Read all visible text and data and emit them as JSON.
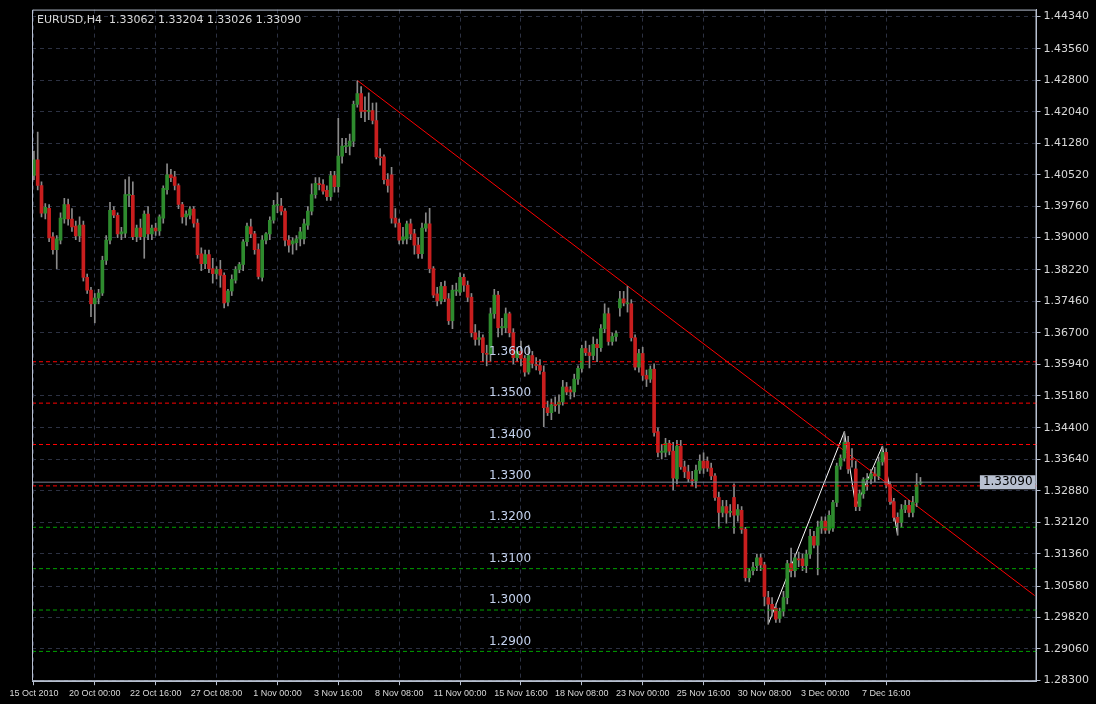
{
  "chart_data": {
    "type": "candlestick",
    "title": "EURUSD,H4  1.33062 1.33204 1.33026 1.33090",
    "categories": [
      "15 Oct 2010",
      null,
      null,
      null,
      null,
      null,
      null,
      null,
      null,
      null,
      null,
      null,
      null,
      null,
      null,
      null,
      "20 Oct 00:00",
      null,
      null,
      null,
      null,
      null,
      null,
      null,
      null,
      null,
      null,
      null,
      null,
      null,
      null,
      null,
      "22 Oct 16:00",
      null,
      null,
      null,
      null,
      null,
      null,
      null,
      null,
      null,
      null,
      null,
      null,
      null,
      null,
      null,
      "27 Oct 08:00",
      null,
      null,
      null,
      null,
      null,
      null,
      null,
      null,
      null,
      null,
      null,
      null,
      null,
      null,
      null,
      "1 Nov 00:00",
      null,
      null,
      null,
      null,
      null,
      null,
      null,
      null,
      null,
      null,
      null,
      null,
      null,
      null,
      null,
      "3 Nov 16:00",
      null,
      null,
      null,
      null,
      null,
      null,
      null,
      null,
      null,
      null,
      null,
      null,
      null,
      null,
      null,
      "8 Nov 08:00",
      null,
      null,
      null,
      null,
      null,
      null,
      null,
      null,
      null,
      null,
      null,
      null,
      null,
      null,
      null,
      "11 Nov 00:00",
      null,
      null,
      null,
      null,
      null,
      null,
      null,
      null,
      null,
      null,
      null,
      null,
      null,
      null,
      null,
      "15 Nov 16:00",
      null,
      null,
      null,
      null,
      null,
      null,
      null,
      null,
      null,
      null,
      null,
      null,
      null,
      null,
      null,
      "18 Nov 08:00",
      null,
      null,
      null,
      null,
      null,
      null,
      null,
      null,
      null,
      null,
      null,
      null,
      null,
      null,
      null,
      "23 Nov 00:00",
      null,
      null,
      null,
      null,
      null,
      null,
      null,
      null,
      null,
      null,
      null,
      null,
      null,
      null,
      null,
      "25 Nov 16:00",
      null,
      null,
      null,
      null,
      null,
      null,
      null,
      null,
      null,
      null,
      null,
      null,
      null,
      null,
      null,
      "30 Nov 08:00",
      null,
      null,
      null,
      null,
      null,
      null,
      null,
      null,
      null,
      null,
      null,
      null,
      null,
      null,
      null,
      "3 Dec 00:00",
      null,
      null,
      null,
      null,
      null,
      null,
      null,
      null,
      null,
      null,
      null,
      null,
      null,
      null,
      null,
      "7 Dec 16:00",
      null,
      null,
      null,
      null,
      null,
      null,
      null,
      null,
      null,
      null,
      null,
      null,
      null,
      null,
      null,
      null,
      null,
      null,
      null,
      null,
      null,
      null,
      null,
      null,
      null,
      null,
      null,
      null,
      null,
      null,
      null,
      null,
      null,
      null,
      null,
      null,
      null,
      null,
      null
    ],
    "ohlc": [
      [
        1.405,
        1.4109,
        1.404,
        1.4088
      ],
      [
        1.4088,
        1.4155,
        1.4015,
        1.4026
      ],
      [
        1.4026,
        1.4035,
        1.395,
        1.3959
      ],
      [
        1.3959,
        1.3982,
        1.3945,
        1.3973
      ],
      [
        1.3971,
        1.398,
        1.389,
        1.3899
      ],
      [
        1.3902,
        1.3912,
        1.386,
        1.3871
      ],
      [
        1.3871,
        1.3905,
        1.3825,
        1.3897
      ],
      [
        1.3894,
        1.396,
        1.3885,
        1.3947
      ],
      [
        1.3945,
        1.3995,
        1.3935,
        1.398
      ],
      [
        1.398,
        1.3993,
        1.393,
        1.3945
      ],
      [
        1.3945,
        1.397,
        1.3915,
        1.3926
      ],
      [
        1.3928,
        1.394,
        1.3895,
        1.3904
      ],
      [
        1.3904,
        1.395,
        1.389,
        1.393
      ],
      [
        1.393,
        1.394,
        1.3795,
        1.3804
      ],
      [
        1.3804,
        1.3812,
        1.3765,
        1.3773
      ],
      [
        1.3773,
        1.378,
        1.3709,
        1.374
      ],
      [
        1.374,
        1.3765,
        1.3694,
        1.3754
      ],
      [
        1.3754,
        1.3775,
        1.374,
        1.3766
      ],
      [
        1.3766,
        1.3855,
        1.376,
        1.3845
      ],
      [
        1.3845,
        1.3905,
        1.3835,
        1.3894
      ],
      [
        1.3894,
        1.3985,
        1.3885,
        1.3966
      ],
      [
        1.3966,
        1.3975,
        1.3948,
        1.3954
      ],
      [
        1.3954,
        1.396,
        1.39,
        1.3909
      ],
      [
        1.3909,
        1.3925,
        1.3895,
        1.3914
      ],
      [
        1.3911,
        1.404,
        1.39,
        1.4004
      ],
      [
        1.4002,
        1.4047,
        1.3975,
        1.4004
      ],
      [
        1.4002,
        1.4035,
        1.3895,
        1.3902
      ],
      [
        1.3902,
        1.393,
        1.389,
        1.3923
      ],
      [
        1.3923,
        1.3945,
        1.3895,
        1.3902
      ],
      [
        1.3902,
        1.3965,
        1.385,
        1.3957
      ],
      [
        1.3957,
        1.3975,
        1.3895,
        1.3909
      ],
      [
        1.3909,
        1.393,
        1.3895,
        1.3923
      ],
      [
        1.3923,
        1.3935,
        1.3905,
        1.3916
      ],
      [
        1.3916,
        1.3955,
        1.3905,
        1.395
      ],
      [
        1.3947,
        1.4025,
        1.3935,
        1.4019
      ],
      [
        1.4016,
        1.4078,
        1.4005,
        1.4052
      ],
      [
        1.4052,
        1.4065,
        1.4035,
        1.4045
      ],
      [
        1.4047,
        1.406,
        1.4015,
        1.4026
      ],
      [
        1.4026,
        1.403,
        1.397,
        1.398
      ],
      [
        1.398,
        1.3985,
        1.3935,
        1.395
      ],
      [
        1.395,
        1.3965,
        1.393,
        1.3957
      ],
      [
        1.3954,
        1.3975,
        1.3945,
        1.3969
      ],
      [
        1.3969,
        1.3975,
        1.3925,
        1.3935
      ],
      [
        1.3935,
        1.3945,
        1.385,
        1.3859
      ],
      [
        1.3861,
        1.3875,
        1.382,
        1.3837
      ],
      [
        1.3837,
        1.387,
        1.3825,
        1.3859
      ],
      [
        1.3859,
        1.387,
        1.3815,
        1.3825
      ],
      [
        1.3825,
        1.385,
        1.379,
        1.3813
      ],
      [
        1.3813,
        1.383,
        1.38,
        1.3823
      ],
      [
        1.3823,
        1.3845,
        1.378,
        1.3809
      ],
      [
        1.3809,
        1.3815,
        1.373,
        1.3742
      ],
      [
        1.3744,
        1.3775,
        1.3735,
        1.3771
      ],
      [
        1.3771,
        1.381,
        1.376,
        1.3799
      ],
      [
        1.3797,
        1.383,
        1.379,
        1.3823
      ],
      [
        1.3823,
        1.384,
        1.3815,
        1.3835
      ],
      [
        1.3835,
        1.3895,
        1.382,
        1.389
      ],
      [
        1.389,
        1.3935,
        1.388,
        1.3928
      ],
      [
        1.3926,
        1.3945,
        1.39,
        1.3909
      ],
      [
        1.3909,
        1.3915,
        1.386,
        1.3871
      ],
      [
        1.3871,
        1.3885,
        1.38,
        1.3806
      ],
      [
        1.3804,
        1.3905,
        1.3795,
        1.3894
      ],
      [
        1.3894,
        1.3912,
        1.3885,
        1.3909
      ],
      [
        1.3909,
        1.395,
        1.3895,
        1.3942
      ],
      [
        1.3942,
        1.399,
        1.3935,
        1.3978
      ],
      [
        1.3978,
        1.4009,
        1.396,
        1.398
      ],
      [
        1.3976,
        1.3995,
        1.3955,
        1.3964
      ],
      [
        1.3964,
        1.397,
        1.388,
        1.3894
      ],
      [
        1.3894,
        1.3905,
        1.3865,
        1.3882
      ],
      [
        1.3885,
        1.39,
        1.386,
        1.3892
      ],
      [
        1.3888,
        1.3905,
        1.387,
        1.3897
      ],
      [
        1.3897,
        1.3925,
        1.388,
        1.3914
      ],
      [
        1.3897,
        1.3945,
        1.3885,
        1.3933
      ],
      [
        1.393,
        1.3975,
        1.392,
        1.3964
      ],
      [
        1.3964,
        1.403,
        1.3955,
        1.4004
      ],
      [
        1.4004,
        1.4045,
        1.3995,
        1.4031
      ],
      [
        1.403,
        1.4045,
        1.4015,
        1.4028
      ],
      [
        1.4028,
        1.404,
        1.4005,
        1.4012
      ],
      [
        1.4014,
        1.4025,
        1.399,
        1.3999
      ],
      [
        1.3999,
        1.406,
        1.399,
        1.405
      ],
      [
        1.405,
        1.406,
        1.401,
        1.4023
      ],
      [
        1.4023,
        1.4188,
        1.401,
        1.4097
      ],
      [
        1.4097,
        1.414,
        1.408,
        1.4121
      ],
      [
        1.412,
        1.414,
        1.4105,
        1.4121
      ],
      [
        1.4121,
        1.415,
        1.41,
        1.4133
      ],
      [
        1.4133,
        1.423,
        1.412,
        1.4222
      ],
      [
        1.4222,
        1.4279,
        1.4215,
        1.4248
      ],
      [
        1.4248,
        1.4265,
        1.419,
        1.4205
      ],
      [
        1.4207,
        1.424,
        1.418,
        1.4205
      ],
      [
        1.4205,
        1.425,
        1.4185,
        1.4207
      ],
      [
        1.4207,
        1.4225,
        1.4175,
        1.4183
      ],
      [
        1.4183,
        1.4226,
        1.409,
        1.4095
      ],
      [
        1.4095,
        1.4115,
        1.4075,
        1.4093
      ],
      [
        1.4095,
        1.41,
        1.403,
        1.404
      ],
      [
        1.404,
        1.4055,
        1.401,
        1.4026
      ],
      [
        1.4052,
        1.407,
        1.3935,
        1.3947
      ],
      [
        1.3947,
        1.397,
        1.3925,
        1.3935
      ],
      [
        1.3935,
        1.3945,
        1.3885,
        1.3894
      ],
      [
        1.3894,
        1.3925,
        1.3885,
        1.3902
      ],
      [
        1.3897,
        1.394,
        1.3885,
        1.3933
      ],
      [
        1.3933,
        1.3945,
        1.3895,
        1.3909
      ],
      [
        1.3909,
        1.392,
        1.386,
        1.3882
      ],
      [
        1.3882,
        1.39,
        1.385,
        1.3861
      ],
      [
        1.3861,
        1.3935,
        1.385,
        1.3923
      ],
      [
        1.3923,
        1.396,
        1.3915,
        1.3933
      ],
      [
        1.3933,
        1.3971,
        1.3815,
        1.3825
      ],
      [
        1.3825,
        1.383,
        1.3755,
        1.3761
      ],
      [
        1.3764,
        1.378,
        1.3735,
        1.3747
      ],
      [
        1.3747,
        1.3792,
        1.374,
        1.3782
      ],
      [
        1.3782,
        1.3795,
        1.3745,
        1.3752
      ],
      [
        1.3752,
        1.3765,
        1.369,
        1.3699
      ],
      [
        1.3699,
        1.3785,
        1.368,
        1.3773
      ],
      [
        1.3771,
        1.379,
        1.376,
        1.3773
      ],
      [
        1.3768,
        1.3815,
        1.376,
        1.3804
      ],
      [
        1.3804,
        1.3812,
        1.377,
        1.3785
      ],
      [
        1.3785,
        1.3795,
        1.3745,
        1.3756
      ],
      [
        1.3756,
        1.3765,
        1.366,
        1.367
      ],
      [
        1.367,
        1.369,
        1.364,
        1.3654
      ],
      [
        1.3654,
        1.3675,
        1.364,
        1.3658
      ],
      [
        1.3658,
        1.3665,
        1.36,
        1.3622
      ],
      [
        1.362,
        1.364,
        1.359,
        1.3618
      ],
      [
        1.3618,
        1.373,
        1.36,
        1.3716
      ],
      [
        1.3716,
        1.3775,
        1.3705,
        1.3761
      ],
      [
        1.3761,
        1.377,
        1.366,
        1.3682
      ],
      [
        1.3682,
        1.3705,
        1.3665,
        1.3685
      ],
      [
        1.3682,
        1.373,
        1.367,
        1.3716
      ],
      [
        1.3716,
        1.372,
        1.366,
        1.367
      ],
      [
        1.367,
        1.368,
        1.3595,
        1.361
      ],
      [
        1.361,
        1.3635,
        1.36,
        1.3625
      ],
      [
        1.3625,
        1.365,
        1.359,
        1.3608
      ],
      [
        1.3608,
        1.3615,
        1.3565,
        1.3575
      ],
      [
        1.3575,
        1.364,
        1.357,
        1.3615
      ],
      [
        1.3615,
        1.3625,
        1.3585,
        1.3596
      ],
      [
        1.3593,
        1.361,
        1.358,
        1.3591
      ],
      [
        1.3591,
        1.3605,
        1.357,
        1.3579
      ],
      [
        1.3575,
        1.359,
        1.3443,
        1.3489
      ],
      [
        1.3489,
        1.3505,
        1.347,
        1.3477
      ],
      [
        1.3477,
        1.351,
        1.346,
        1.3496
      ],
      [
        1.3496,
        1.3515,
        1.348,
        1.3494
      ],
      [
        1.3496,
        1.352,
        1.3475,
        1.3503
      ],
      [
        1.3503,
        1.3555,
        1.3495,
        1.3539
      ],
      [
        1.3539,
        1.355,
        1.352,
        1.3527
      ],
      [
        1.3532,
        1.354,
        1.351,
        1.3527
      ],
      [
        1.3527,
        1.357,
        1.3515,
        1.3558
      ],
      [
        1.3558,
        1.359,
        1.3545,
        1.3584
      ],
      [
        1.3584,
        1.364,
        1.3575,
        1.3632
      ],
      [
        1.3632,
        1.365,
        1.3615,
        1.3622
      ],
      [
        1.3622,
        1.364,
        1.3585,
        1.3615
      ],
      [
        1.3615,
        1.366,
        1.3605,
        1.3642
      ],
      [
        1.3642,
        1.3655,
        1.36,
        1.3634
      ],
      [
        1.3634,
        1.369,
        1.3625,
        1.368
      ],
      [
        1.368,
        1.374,
        1.367,
        1.3716
      ],
      [
        1.3716,
        1.373,
        1.364,
        1.3649
      ],
      [
        1.3649,
        1.367,
        1.364,
        1.3661
      ],
      [
        1.3661,
        1.3675,
        1.365,
        1.3668
      ],
      [
        1.373,
        1.377,
        1.371,
        1.3752
      ],
      [
        1.3752,
        1.377,
        1.3735,
        1.3742
      ],
      [
        1.374,
        1.3782,
        1.372,
        1.3742
      ],
      [
        1.374,
        1.375,
        1.365,
        1.3658
      ],
      [
        1.3658,
        1.3665,
        1.358,
        1.3587
      ],
      [
        1.3587,
        1.363,
        1.3575,
        1.362
      ],
      [
        1.362,
        1.3635,
        1.3555,
        1.3567
      ],
      [
        1.3567,
        1.358,
        1.354,
        1.3558
      ],
      [
        1.3558,
        1.359,
        1.355,
        1.3582
      ],
      [
        1.3582,
        1.3595,
        1.342,
        1.3429
      ],
      [
        1.3431,
        1.344,
        1.337,
        1.3381
      ],
      [
        1.3381,
        1.34,
        1.3365,
        1.3384
      ],
      [
        1.3381,
        1.3415,
        1.337,
        1.3403
      ],
      [
        1.3403,
        1.341,
        1.3375,
        1.3384
      ],
      [
        1.3384,
        1.3405,
        1.329,
        1.3319
      ],
      [
        1.3317,
        1.341,
        1.3305,
        1.3396
      ],
      [
        1.3396,
        1.341,
        1.334,
        1.3346
      ],
      [
        1.3346,
        1.336,
        1.332,
        1.3334
      ],
      [
        1.3334,
        1.335,
        1.331,
        1.3317
      ],
      [
        1.3315,
        1.3335,
        1.33,
        1.3312
      ],
      [
        1.3312,
        1.335,
        1.3295,
        1.3338
      ],
      [
        1.3338,
        1.3375,
        1.333,
        1.336
      ],
      [
        1.336,
        1.338,
        1.333,
        1.3343
      ],
      [
        1.336,
        1.337,
        1.3335,
        1.3343
      ],
      [
        1.3343,
        1.3355,
        1.3315,
        1.3324
      ],
      [
        1.3324,
        1.333,
        1.3265,
        1.3272
      ],
      [
        1.3272,
        1.3285,
        1.3198,
        1.3236
      ],
      [
        1.3236,
        1.3265,
        1.3225,
        1.325
      ],
      [
        1.325,
        1.3265,
        1.321,
        1.3234
      ],
      [
        1.3236,
        1.3255,
        1.3225,
        1.3238
      ],
      [
        1.3272,
        1.3305,
        1.3185,
        1.3229
      ],
      [
        1.3229,
        1.3255,
        1.3215,
        1.3243
      ],
      [
        1.3241,
        1.325,
        1.3185,
        1.3195
      ],
      [
        1.3195,
        1.32,
        1.307,
        1.3078
      ],
      [
        1.3078,
        1.31,
        1.3068,
        1.3095
      ],
      [
        1.3095,
        1.3115,
        1.3085,
        1.3104
      ],
      [
        1.3107,
        1.3135,
        1.3095,
        1.3126
      ],
      [
        1.3126,
        1.3135,
        1.3095,
        1.3109
      ],
      [
        1.3109,
        1.3115,
        1.301,
        1.3033
      ],
      [
        1.303,
        1.3045,
        1.2966,
        1.3014
      ],
      [
        1.3014,
        1.303,
        1.2985,
        1.3002
      ],
      [
        1.3004,
        1.3015,
        1.297,
        1.2978
      ],
      [
        1.298,
        1.3005,
        1.297,
        1.2997
      ],
      [
        1.2997,
        1.3045,
        1.2985,
        1.303
      ],
      [
        1.303,
        1.312,
        1.3015,
        1.3112
      ],
      [
        1.3112,
        1.315,
        1.308,
        1.3095
      ],
      [
        1.3095,
        1.3135,
        1.308,
        1.3126
      ],
      [
        1.3124,
        1.314,
        1.3105,
        1.3121
      ],
      [
        1.3124,
        1.3135,
        1.3095,
        1.3107
      ],
      [
        1.3107,
        1.3145,
        1.309,
        1.3135
      ],
      [
        1.3135,
        1.3195,
        1.3125,
        1.3178
      ],
      [
        1.3178,
        1.319,
        1.315,
        1.3157
      ],
      [
        1.3157,
        1.3215,
        1.3085,
        1.3198
      ],
      [
        1.3198,
        1.3225,
        1.3185,
        1.3215
      ],
      [
        1.3215,
        1.3225,
        1.3185,
        1.3193
      ],
      [
        1.3193,
        1.324,
        1.3185,
        1.3229
      ],
      [
        1.3198,
        1.3265,
        1.319,
        1.326
      ],
      [
        1.326,
        1.3355,
        1.325,
        1.3348
      ],
      [
        1.3348,
        1.3375,
        1.334,
        1.3367
      ],
      [
        1.3367,
        1.3431,
        1.336,
        1.3405
      ],
      [
        1.3405,
        1.342,
        1.333,
        1.3341
      ],
      [
        1.3365,
        1.339,
        1.3345,
        1.3363
      ],
      [
        1.3341,
        1.336,
        1.324,
        1.325
      ],
      [
        1.325,
        1.329,
        1.324,
        1.3281
      ],
      [
        1.3281,
        1.332,
        1.327,
        1.3315
      ],
      [
        1.3315,
        1.333,
        1.329,
        1.3317
      ],
      [
        1.3317,
        1.334,
        1.3305,
        1.3329
      ],
      [
        1.3329,
        1.3345,
        1.331,
        1.3324
      ],
      [
        1.3324,
        1.337,
        1.3315,
        1.3358
      ],
      [
        1.3358,
        1.3396,
        1.335,
        1.3381
      ],
      [
        1.3381,
        1.339,
        1.3295,
        1.3303
      ],
      [
        1.3303,
        1.331,
        1.3255,
        1.3262
      ],
      [
        1.3262,
        1.327,
        1.3215,
        1.3224
      ],
      [
        1.3224,
        1.3235,
        1.3181,
        1.3212
      ],
      [
        1.3212,
        1.3255,
        1.32,
        1.3243
      ],
      [
        1.3243,
        1.3265,
        1.3235,
        1.3253
      ],
      [
        1.3253,
        1.3265,
        1.3225,
        1.3236
      ],
      [
        1.3236,
        1.3275,
        1.3225,
        1.326
      ],
      [
        1.326,
        1.333,
        1.325,
        1.3303
      ],
      [
        1.33062,
        1.33204,
        1.33026,
        1.3309
      ],
      null,
      null,
      null,
      null,
      null,
      null,
      null,
      null,
      null,
      null,
      null,
      null,
      null,
      null,
      null,
      null,
      null,
      null,
      null,
      null,
      null,
      null,
      null,
      null,
      null,
      null,
      null,
      null,
      null,
      null
    ],
    "series": [
      {
        "type": "line",
        "color": "#ff0000",
        "values": [
          null,
          null,
          null,
          null,
          null,
          null,
          null,
          null,
          null,
          null,
          null,
          null,
          null,
          null,
          null,
          null,
          null,
          null,
          null,
          null,
          null,
          null,
          null,
          null,
          null,
          null,
          null,
          null,
          null,
          null,
          null,
          null,
          null,
          null,
          null,
          null,
          null,
          null,
          null,
          null,
          null,
          null,
          null,
          null,
          null,
          null,
          null,
          null,
          null,
          null,
          null,
          null,
          null,
          null,
          null,
          null,
          null,
          null,
          null,
          null,
          null,
          null,
          null,
          null,
          null,
          null,
          null,
          null,
          null,
          null,
          null,
          null,
          null,
          null,
          null,
          null,
          null,
          null,
          null,
          null,
          null,
          null,
          null,
          null,
          null,
          1.428,
          null,
          null,
          null,
          null,
          null,
          null,
          null,
          null,
          null,
          null,
          null,
          null,
          null,
          null,
          null,
          null,
          null,
          null,
          null,
          null,
          null,
          null,
          null,
          null,
          null,
          null,
          null,
          null,
          null,
          null,
          null,
          null,
          null,
          null,
          null,
          null,
          null,
          null,
          null,
          null,
          null,
          null,
          null,
          null,
          null,
          null,
          null,
          null,
          null,
          null,
          null,
          null,
          null,
          null,
          null,
          null,
          null,
          null,
          null,
          null,
          null,
          null,
          null,
          null,
          null,
          null,
          null,
          null,
          null,
          null,
          null,
          null,
          null,
          null,
          null,
          null,
          null,
          null,
          null,
          null,
          null,
          null,
          null,
          null,
          null,
          null,
          null,
          null,
          null,
          null,
          null,
          null,
          null,
          null,
          null,
          null,
          null,
          null,
          null,
          null,
          null,
          null,
          null,
          null,
          null,
          null,
          null,
          null,
          null,
          null,
          null,
          null,
          null,
          null,
          null,
          null,
          null,
          null,
          null,
          null,
          null,
          null,
          null,
          null,
          null,
          null,
          null,
          null,
          null,
          null,
          null,
          null,
          null,
          null,
          null,
          null,
          null,
          null,
          null,
          null,
          null,
          null,
          null,
          null,
          null,
          null,
          null,
          null,
          null,
          null,
          null,
          null,
          null,
          null,
          null,
          null,
          null,
          null,
          null,
          null,
          null,
          null,
          null,
          null,
          null,
          null,
          null,
          null,
          null,
          null,
          null,
          null,
          null,
          null,
          null,
          null,
          null,
          1.3035
        ]
      },
      {
        "type": "line",
        "color": "#ffffff",
        "values": [
          null,
          null,
          null,
          null,
          null,
          null,
          null,
          null,
          null,
          null,
          null,
          null,
          null,
          null,
          null,
          null,
          null,
          null,
          null,
          null,
          null,
          null,
          null,
          null,
          null,
          null,
          null,
          null,
          null,
          null,
          null,
          null,
          null,
          null,
          null,
          null,
          null,
          null,
          null,
          null,
          null,
          null,
          null,
          null,
          null,
          null,
          null,
          null,
          null,
          null,
          null,
          null,
          null,
          null,
          null,
          null,
          null,
          null,
          null,
          null,
          null,
          null,
          null,
          null,
          null,
          null,
          null,
          null,
          null,
          null,
          null,
          null,
          null,
          null,
          null,
          null,
          null,
          null,
          null,
          null,
          null,
          null,
          null,
          null,
          null,
          null,
          null,
          null,
          null,
          null,
          null,
          null,
          null,
          null,
          null,
          null,
          null,
          null,
          null,
          null,
          null,
          null,
          null,
          null,
          null,
          null,
          null,
          null,
          null,
          null,
          null,
          null,
          null,
          null,
          null,
          null,
          null,
          null,
          null,
          null,
          null,
          null,
          null,
          null,
          null,
          null,
          null,
          null,
          null,
          null,
          null,
          null,
          null,
          null,
          null,
          null,
          null,
          null,
          null,
          null,
          null,
          null,
          null,
          null,
          null,
          null,
          null,
          null,
          null,
          null,
          null,
          null,
          null,
          null,
          null,
          null,
          null,
          null,
          null,
          null,
          null,
          null,
          null,
          null,
          null,
          null,
          null,
          null,
          null,
          null,
          null,
          null,
          null,
          null,
          null,
          null,
          null,
          null,
          null,
          null,
          null,
          null,
          null,
          null,
          null,
          null,
          null,
          null,
          null,
          null,
          null,
          null,
          null,
          1.2966,
          null,
          null,
          null,
          null,
          null,
          null,
          null,
          null,
          null,
          null,
          null,
          null,
          null,
          null,
          null,
          null,
          null,
          null,
          null,
          1.3431,
          null,
          null,
          1.325,
          null,
          null,
          null,
          null,
          null,
          null,
          1.3396,
          null,
          null,
          null,
          1.3181,
          null,
          null,
          null,
          null,
          null,
          null,
          null,
          null,
          null,
          null,
          null,
          null,
          null,
          null,
          null,
          null,
          null,
          null,
          null,
          null,
          null,
          null,
          null,
          null,
          null,
          null,
          null,
          null,
          null,
          null,
          null,
          null,
          null,
          null,
          null,
          null
        ]
      }
    ],
    "ylim": [
      1.2828,
      1.4451
    ],
    "yticks": [
      {
        "value": 1.4434,
        "label": "1.44340"
      },
      {
        "value": 1.4356,
        "label": "1.43560"
      },
      {
        "value": 1.428,
        "label": "1.42800"
      },
      {
        "value": 1.4204,
        "label": "1.42040"
      },
      {
        "value": 1.4128,
        "label": "1.41280"
      },
      {
        "value": 1.4052,
        "label": "1.40520"
      },
      {
        "value": 1.3976,
        "label": "1.39760"
      },
      {
        "value": 1.39,
        "label": "1.39000"
      },
      {
        "value": 1.3822,
        "label": "1.38220"
      },
      {
        "value": 1.3746,
        "label": "1.37460"
      },
      {
        "value": 1.367,
        "label": "1.36700"
      },
      {
        "value": 1.3594,
        "label": "1.35940"
      },
      {
        "value": 1.3518,
        "label": "1.35180"
      },
      {
        "value": 1.344,
        "label": "1.34400"
      },
      {
        "value": 1.3364,
        "label": "1.33640"
      },
      {
        "value": 1.3288,
        "label": "1.32880"
      },
      {
        "value": 1.3212,
        "label": "1.32120"
      },
      {
        "value": 1.3136,
        "label": "1.31360"
      },
      {
        "value": 1.3058,
        "label": "1.30580"
      },
      {
        "value": 1.2982,
        "label": "1.29820"
      },
      {
        "value": 1.2906,
        "label": "1.29060"
      },
      {
        "value": 1.283,
        "label": "1.28300"
      }
    ],
    "ref_lines": [
      {
        "axis": "y",
        "value": 1.36,
        "label": "1.3600",
        "color": "#ff0000",
        "line_style": "dashed"
      },
      {
        "axis": "y",
        "value": 1.35,
        "label": "1.3500",
        "color": "#ff0000",
        "line_style": "dashed"
      },
      {
        "axis": "y",
        "value": 1.34,
        "label": "1.3400",
        "color": "#ff0000",
        "line_style": "dashed"
      },
      {
        "axis": "y",
        "value": 1.33,
        "label": "1.3300",
        "color": "#ff0000",
        "line_style": "dashed"
      },
      {
        "axis": "y",
        "value": 1.32,
        "label": "1.3200",
        "color": "#00a000",
        "line_style": "dashed"
      },
      {
        "axis": "y",
        "value": 1.31,
        "label": "1.3100",
        "color": "#00a000",
        "line_style": "dashed"
      },
      {
        "axis": "y",
        "value": 1.3,
        "label": "1.3000",
        "color": "#00a000",
        "line_style": "dashed"
      },
      {
        "axis": "y",
        "value": 1.29,
        "label": "1.2900",
        "color": "#00a000",
        "line_style": "dashed"
      },
      {
        "axis": "y",
        "value": 1.3309,
        "label": "1.33090",
        "color": "#7a8094",
        "line_style": "solid"
      }
    ],
    "grid": true,
    "legend": false
  }
}
